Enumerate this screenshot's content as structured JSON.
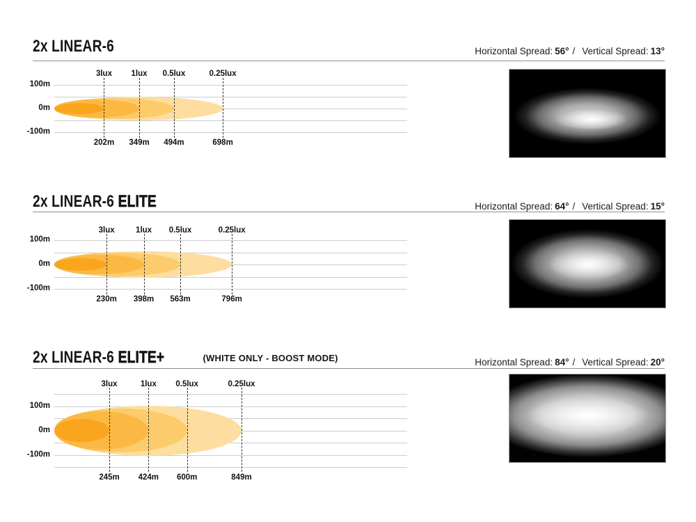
{
  "page": {
    "background": "#ffffff"
  },
  "colors": {
    "lux_fill_inner_to_outer": [
      "#F9A61E",
      "#FBB944",
      "#FCCB6B",
      "#FDDEA0"
    ],
    "photo_background": "#000000",
    "text": "#111111"
  },
  "sections": [
    {
      "title_base": "2x LINEAR-6",
      "title_strong": "",
      "title_note": "",
      "spread": {
        "h_label": "Horizontal Spread:",
        "h_value": "56°",
        "sep": "/",
        "v_label": "Vertical Spread:",
        "v_value": "13°"
      }
    },
    {
      "title_base": "2x LINEAR-6",
      "title_strong": "ELITE",
      "title_note": "",
      "spread": {
        "h_label": "Horizontal Spread:",
        "h_value": "64°",
        "sep": "/",
        "v_label": "Vertical Spread:",
        "v_value": "15°"
      }
    },
    {
      "title_base": "2x LINEAR-6",
      "title_strong": "ELITE+",
      "title_note": "(WHITE ONLY - BOOST MODE)",
      "spread": {
        "h_label": "Horizontal Spread:",
        "h_value": "84°",
        "sep": "/",
        "v_label": "Vertical Spread:",
        "v_value": "20°"
      }
    }
  ],
  "chart_data": [
    {
      "type": "area",
      "title": "2x LINEAR-6 beam pattern",
      "x_unit": "m",
      "y_unit": "m",
      "ylim": [
        -100,
        100
      ],
      "y_axis_labels": [
        "100m",
        "0m",
        "-100m"
      ],
      "grid": true,
      "horizontal_spread_deg": 56,
      "vertical_spread_deg": 13,
      "lux_levels": [
        {
          "label": "3lux",
          "distance_label": "202m",
          "distance_m": 202
        },
        {
          "label": "1lux",
          "distance_label": "349m",
          "distance_m": 349
        },
        {
          "label": "0.5lux",
          "distance_label": "494m",
          "distance_m": 494
        },
        {
          "label": "0.25lux",
          "distance_label": "698m",
          "distance_m": 698
        }
      ]
    },
    {
      "type": "area",
      "title": "2x LINEAR-6 ELITE beam pattern",
      "x_unit": "m",
      "y_unit": "m",
      "ylim": [
        -100,
        100
      ],
      "y_axis_labels": [
        "100m",
        "0m",
        "-100m"
      ],
      "grid": true,
      "horizontal_spread_deg": 64,
      "vertical_spread_deg": 15,
      "lux_levels": [
        {
          "label": "3lux",
          "distance_label": "230m",
          "distance_m": 230
        },
        {
          "label": "1lux",
          "distance_label": "398m",
          "distance_m": 398
        },
        {
          "label": "0.5lux",
          "distance_label": "563m",
          "distance_m": 563
        },
        {
          "label": "0.25lux",
          "distance_label": "796m",
          "distance_m": 796
        }
      ]
    },
    {
      "type": "area",
      "title": "2x LINEAR-6 ELITE+ beam pattern (white only - boost mode)",
      "x_unit": "m",
      "y_unit": "m",
      "ylim": [
        -150,
        150
      ],
      "y_axis_labels": [
        "100m",
        "0m",
        "-100m"
      ],
      "grid": true,
      "horizontal_spread_deg": 84,
      "vertical_spread_deg": 20,
      "lux_levels": [
        {
          "label": "3lux",
          "distance_label": "245m",
          "distance_m": 245
        },
        {
          "label": "1lux",
          "distance_label": "424m",
          "distance_m": 424
        },
        {
          "label": "0.5lux",
          "distance_label": "600m",
          "distance_m": 600
        },
        {
          "label": "0.25lux",
          "distance_label": "849m",
          "distance_m": 849
        }
      ]
    }
  ]
}
